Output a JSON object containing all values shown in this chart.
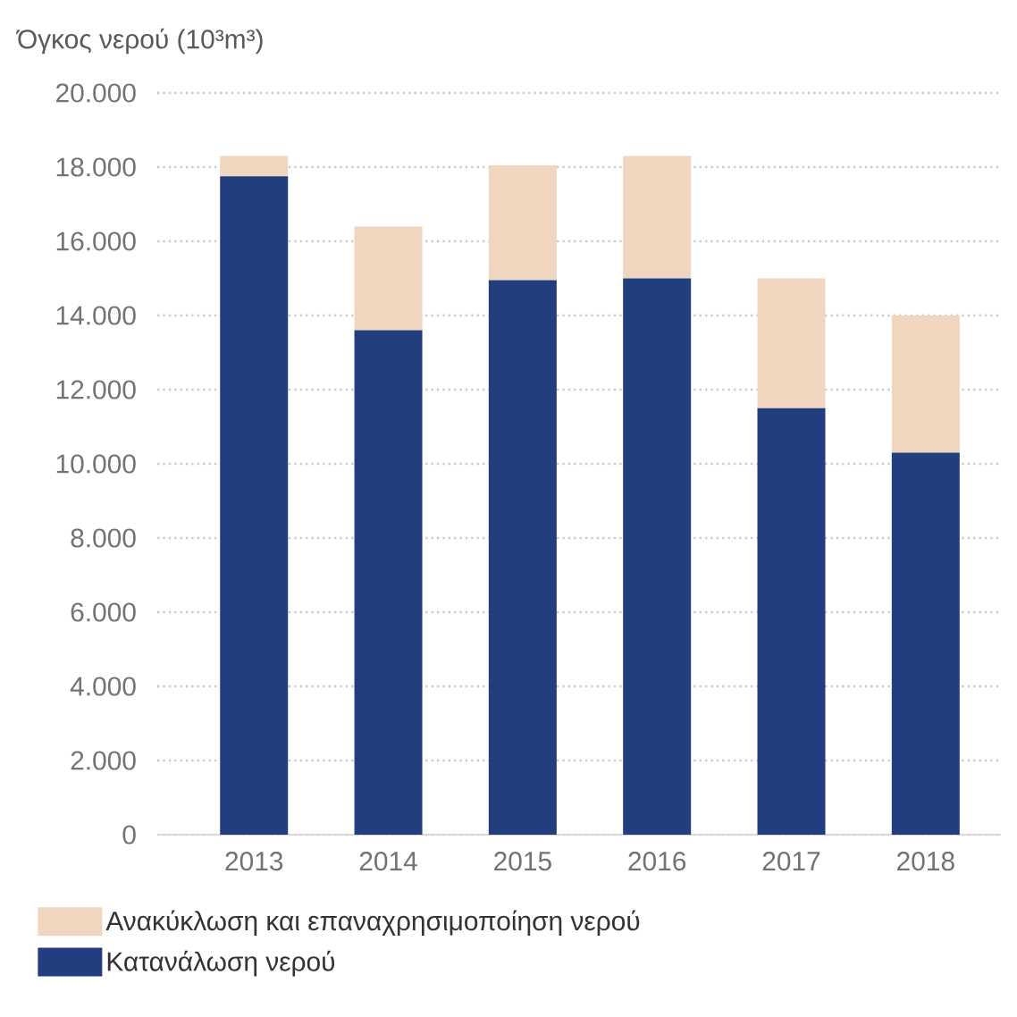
{
  "chart_data": {
    "type": "bar",
    "stacked": true,
    "ylabel": "Όγκος νερού (10³m³)",
    "categories": [
      "2013",
      "2014",
      "2015",
      "2016",
      "2017",
      "2018"
    ],
    "series": [
      {
        "name": "Κατανάλωση νερού",
        "color": "#233e7e",
        "values": [
          17750,
          13600,
          14950,
          15000,
          11500,
          10300
        ]
      },
      {
        "name": "Ανακύκλωση και επαναχρησιμοποίηση νερού",
        "color": "#f0d6bf",
        "values": [
          550,
          2800,
          3100,
          3300,
          3500,
          3700
        ]
      }
    ],
    "ylim": [
      0,
      20000
    ],
    "yticks": [
      0,
      {
        "value": 2000,
        "label": "2.000"
      },
      {
        "value": 4000,
        "label": "4.000"
      },
      {
        "value": 6000,
        "label": "6.000"
      },
      {
        "value": 8000,
        "label": "8.000"
      },
      {
        "value": 10000,
        "label": "10.000"
      },
      {
        "value": 12000,
        "label": "12.000"
      },
      {
        "value": 14000,
        "label": "14.000"
      },
      {
        "value": 16000,
        "label": "16.000"
      },
      {
        "value": 18000,
        "label": "18.000"
      },
      {
        "value": 20000,
        "label": "20.000"
      }
    ],
    "grid": "y",
    "legend": "bottom"
  }
}
